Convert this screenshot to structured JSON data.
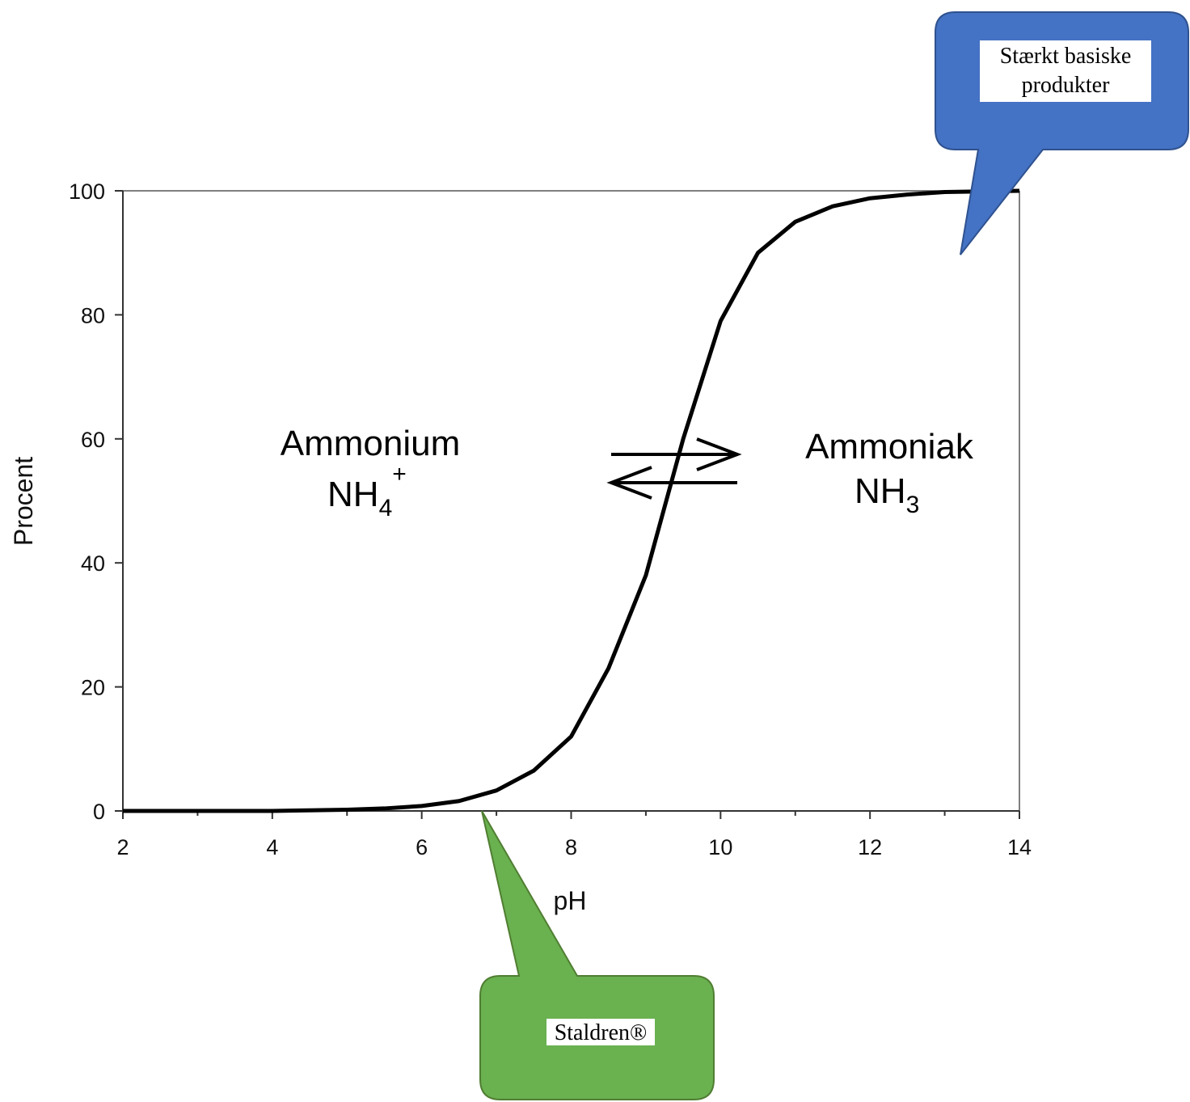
{
  "chart_data": {
    "type": "line",
    "x": [
      2,
      2.5,
      3,
      3.5,
      4,
      4.5,
      5,
      5.5,
      6,
      6.5,
      7,
      7.5,
      8,
      8.5,
      9,
      9.5,
      10,
      10.5,
      11,
      11.5,
      12,
      12.5,
      13,
      13.5,
      14
    ],
    "series": [
      {
        "color": "#000000",
        "values": [
          0,
          0,
          0,
          0,
          0,
          0.1,
          0.2,
          0.4,
          0.8,
          1.6,
          3.3,
          6.5,
          12,
          23,
          38,
          60,
          79,
          90,
          95,
          97.5,
          98.8,
          99.4,
          99.8,
          99.9,
          100
        ]
      }
    ],
    "xlim": [
      2,
      14
    ],
    "ylim": [
      0,
      100
    ],
    "xticks": [
      2,
      4,
      6,
      8,
      10,
      12,
      14
    ],
    "xminor_ticks": [
      3,
      5,
      7,
      9,
      11,
      13
    ],
    "yticks": [
      0,
      20,
      40,
      60,
      80,
      100
    ],
    "xlabel": "pH",
    "ylabel": "Procent",
    "annotations": {
      "ammonium": {
        "name": "Ammonium",
        "formula": "NH",
        "sub": "4",
        "sup": "+"
      },
      "ammoniak": {
        "name": "Ammoniak",
        "formula": "NH",
        "sub": "3"
      },
      "callout_base": {
        "line1": "Stærkt basiske",
        "line2": "produkter"
      },
      "callout_staldren": "Staldren®"
    }
  }
}
